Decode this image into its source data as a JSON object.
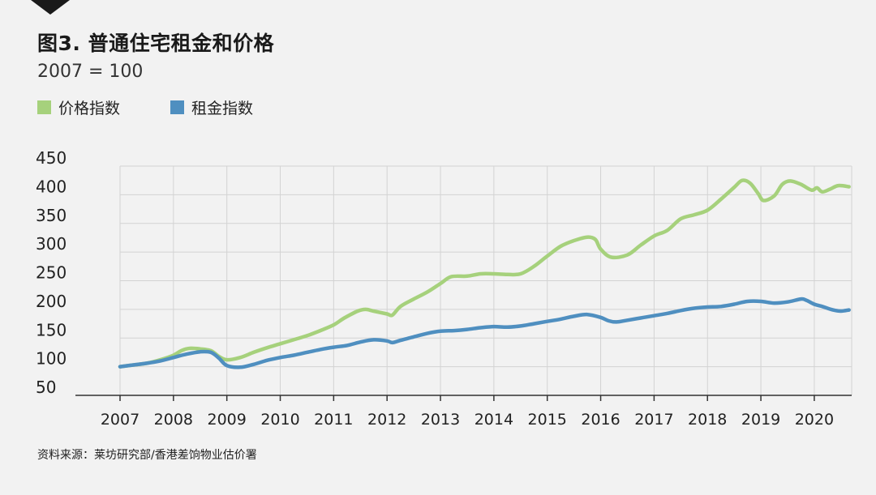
{
  "header": {
    "title": "图3. 普通住宅租金和价格",
    "subtitle": "2007 = 100"
  },
  "footer": {
    "source": "资料来源：莱坊研究部/香港差饷物业估价署"
  },
  "colors": {
    "price": "#a6d17c",
    "rent": "#4f8fc0",
    "grid": "#d3d3d3",
    "axis": "#333333",
    "background": "#f2f2f2"
  },
  "chart_data": {
    "type": "line",
    "title": "图3. 普通住宅租金和价格",
    "subtitle": "2007 = 100",
    "xlabel": "",
    "ylabel": "",
    "xlim": [
      2007,
      2020.7
    ],
    "ylim": [
      50,
      450
    ],
    "x_ticks": [
      2007,
      2008,
      2009,
      2010,
      2011,
      2012,
      2013,
      2014,
      2015,
      2016,
      2017,
      2018,
      2019,
      2020
    ],
    "y_ticks": [
      50,
      100,
      150,
      200,
      250,
      300,
      350,
      400,
      450
    ],
    "grid": true,
    "legend_position": "top-left",
    "series": [
      {
        "name": "价格指数",
        "color": "#a6d17c",
        "points": [
          [
            2007.0,
            100
          ],
          [
            2007.25,
            103
          ],
          [
            2007.5,
            106
          ],
          [
            2007.75,
            112
          ],
          [
            2008.0,
            120
          ],
          [
            2008.15,
            128
          ],
          [
            2008.3,
            132
          ],
          [
            2008.5,
            131
          ],
          [
            2008.7,
            128
          ],
          [
            2008.85,
            118
          ],
          [
            2009.0,
            112
          ],
          [
            2009.25,
            116
          ],
          [
            2009.5,
            125
          ],
          [
            2009.75,
            133
          ],
          [
            2010.0,
            140
          ],
          [
            2010.25,
            147
          ],
          [
            2010.5,
            154
          ],
          [
            2010.75,
            163
          ],
          [
            2011.0,
            173
          ],
          [
            2011.2,
            185
          ],
          [
            2011.45,
            197
          ],
          [
            2011.6,
            200
          ],
          [
            2011.75,
            197
          ],
          [
            2012.0,
            192
          ],
          [
            2012.1,
            190
          ],
          [
            2012.25,
            205
          ],
          [
            2012.5,
            218
          ],
          [
            2012.75,
            230
          ],
          [
            2013.0,
            245
          ],
          [
            2013.2,
            257
          ],
          [
            2013.5,
            258
          ],
          [
            2013.75,
            262
          ],
          [
            2014.0,
            262
          ],
          [
            2014.25,
            261
          ],
          [
            2014.5,
            262
          ],
          [
            2014.75,
            275
          ],
          [
            2015.0,
            293
          ],
          [
            2015.25,
            310
          ],
          [
            2015.5,
            320
          ],
          [
            2015.75,
            326
          ],
          [
            2015.9,
            322
          ],
          [
            2016.0,
            305
          ],
          [
            2016.2,
            291
          ],
          [
            2016.5,
            295
          ],
          [
            2016.75,
            312
          ],
          [
            2017.0,
            328
          ],
          [
            2017.25,
            338
          ],
          [
            2017.5,
            358
          ],
          [
            2017.75,
            365
          ],
          [
            2018.0,
            373
          ],
          [
            2018.25,
            392
          ],
          [
            2018.5,
            413
          ],
          [
            2018.65,
            425
          ],
          [
            2018.8,
            420
          ],
          [
            2018.95,
            402
          ],
          [
            2019.05,
            390
          ],
          [
            2019.25,
            398
          ],
          [
            2019.4,
            418
          ],
          [
            2019.55,
            424
          ],
          [
            2019.75,
            418
          ],
          [
            2019.95,
            408
          ],
          [
            2020.05,
            412
          ],
          [
            2020.15,
            405
          ],
          [
            2020.3,
            410
          ],
          [
            2020.45,
            416
          ],
          [
            2020.65,
            414
          ]
        ]
      },
      {
        "name": "租金指数",
        "color": "#4f8fc0",
        "points": [
          [
            2007.0,
            100
          ],
          [
            2007.25,
            103
          ],
          [
            2007.5,
            106
          ],
          [
            2007.75,
            110
          ],
          [
            2008.0,
            116
          ],
          [
            2008.25,
            122
          ],
          [
            2008.5,
            126
          ],
          [
            2008.7,
            125
          ],
          [
            2008.85,
            115
          ],
          [
            2009.0,
            102
          ],
          [
            2009.25,
            99
          ],
          [
            2009.5,
            104
          ],
          [
            2009.75,
            111
          ],
          [
            2010.0,
            116
          ],
          [
            2010.25,
            120
          ],
          [
            2010.5,
            125
          ],
          [
            2010.75,
            130
          ],
          [
            2011.0,
            134
          ],
          [
            2011.25,
            137
          ],
          [
            2011.5,
            143
          ],
          [
            2011.75,
            147
          ],
          [
            2012.0,
            145
          ],
          [
            2012.1,
            142
          ],
          [
            2012.25,
            146
          ],
          [
            2012.5,
            152
          ],
          [
            2012.75,
            158
          ],
          [
            2013.0,
            162
          ],
          [
            2013.25,
            163
          ],
          [
            2013.5,
            165
          ],
          [
            2013.75,
            168
          ],
          [
            2014.0,
            170
          ],
          [
            2014.25,
            169
          ],
          [
            2014.5,
            171
          ],
          [
            2014.75,
            175
          ],
          [
            2015.0,
            179
          ],
          [
            2015.25,
            183
          ],
          [
            2015.5,
            188
          ],
          [
            2015.75,
            191
          ],
          [
            2016.0,
            186
          ],
          [
            2016.15,
            180
          ],
          [
            2016.3,
            178
          ],
          [
            2016.5,
            181
          ],
          [
            2016.75,
            185
          ],
          [
            2017.0,
            189
          ],
          [
            2017.25,
            193
          ],
          [
            2017.5,
            198
          ],
          [
            2017.75,
            202
          ],
          [
            2018.0,
            204
          ],
          [
            2018.25,
            205
          ],
          [
            2018.5,
            209
          ],
          [
            2018.75,
            214
          ],
          [
            2019.0,
            214
          ],
          [
            2019.25,
            211
          ],
          [
            2019.5,
            213
          ],
          [
            2019.75,
            218
          ],
          [
            2019.85,
            216
          ],
          [
            2020.0,
            209
          ],
          [
            2020.15,
            205
          ],
          [
            2020.35,
            199
          ],
          [
            2020.5,
            197
          ],
          [
            2020.65,
            199
          ]
        ]
      }
    ]
  }
}
